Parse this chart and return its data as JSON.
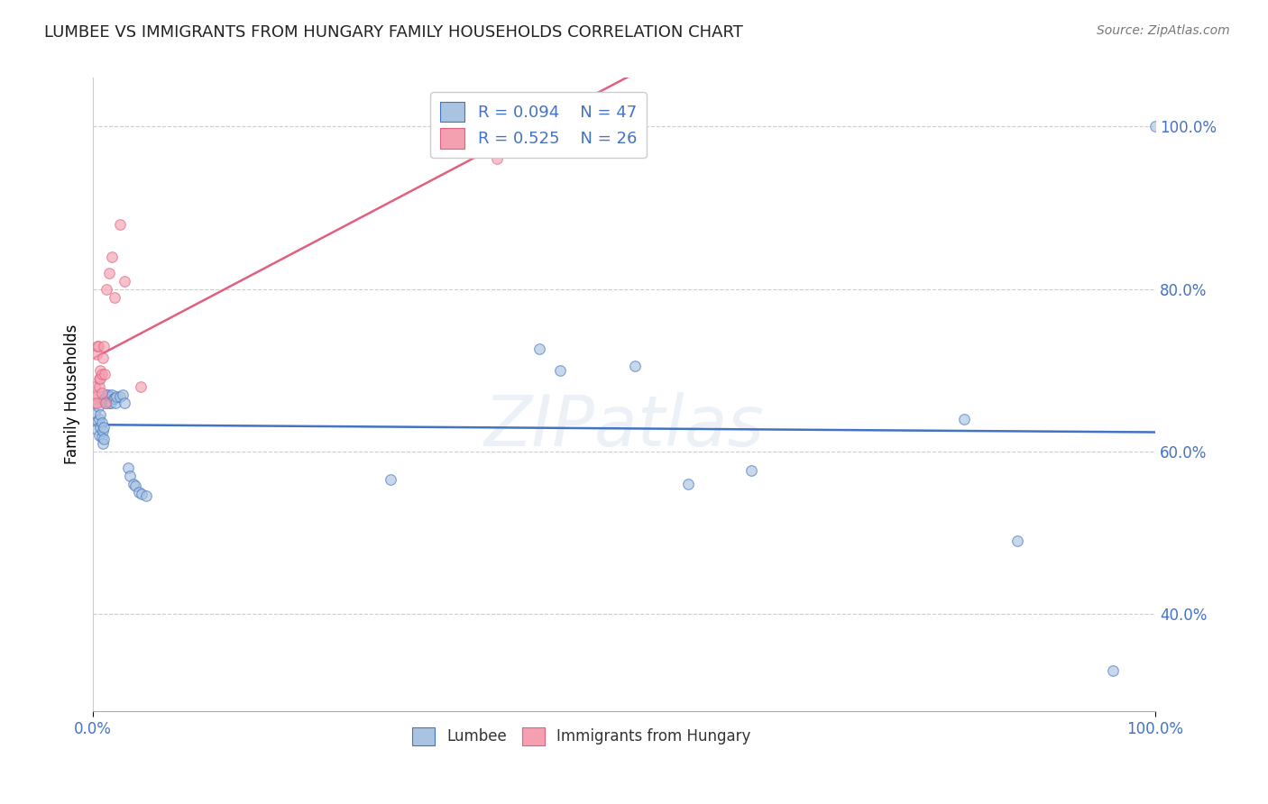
{
  "title": "LUMBEE VS IMMIGRANTS FROM HUNGARY FAMILY HOUSEHOLDS CORRELATION CHART",
  "source": "Source: ZipAtlas.com",
  "ylabel": "Family Households",
  "watermark": "ZIPatlas",
  "lumbee_R": 0.094,
  "lumbee_N": 47,
  "hungary_R": 0.525,
  "hungary_N": 26,
  "lumbee_color": "#a8c4e0",
  "hungary_color": "#f4a0b0",
  "lumbee_line_color": "#4472c4",
  "hungary_line_color": "#e06080",
  "legend_text_color": "#4472c4",
  "title_color": "#222222",
  "background_color": "#ffffff",
  "lumbee_x": [
    0.002,
    0.003,
    0.004,
    0.005,
    0.006,
    0.006,
    0.007,
    0.007,
    0.008,
    0.008,
    0.009,
    0.009,
    0.01,
    0.01,
    0.011,
    0.012,
    0.013,
    0.013,
    0.014,
    0.015,
    0.016,
    0.017,
    0.018,
    0.019,
    0.02,
    0.021,
    0.022,
    0.025,
    0.028,
    0.03,
    0.033,
    0.035,
    0.038,
    0.04,
    0.043,
    0.046,
    0.05,
    0.28,
    0.42,
    0.44,
    0.51,
    0.56,
    0.62,
    0.82,
    0.87,
    0.96,
    1.0
  ],
  "lumbee_y": [
    0.648,
    0.628,
    0.638,
    0.655,
    0.62,
    0.64,
    0.63,
    0.645,
    0.618,
    0.635,
    0.61,
    0.625,
    0.615,
    0.63,
    0.665,
    0.66,
    0.662,
    0.67,
    0.67,
    0.66,
    0.668,
    0.66,
    0.67,
    0.665,
    0.665,
    0.66,
    0.668,
    0.668,
    0.67,
    0.66,
    0.58,
    0.57,
    0.56,
    0.558,
    0.55,
    0.548,
    0.545,
    0.565,
    0.726,
    0.7,
    0.705,
    0.56,
    0.577,
    0.64,
    0.49,
    0.33,
    1.0
  ],
  "hungary_x": [
    0.0,
    0.001,
    0.002,
    0.002,
    0.003,
    0.003,
    0.004,
    0.005,
    0.006,
    0.006,
    0.007,
    0.007,
    0.008,
    0.008,
    0.009,
    0.01,
    0.011,
    0.012,
    0.013,
    0.015,
    0.018,
    0.02,
    0.025,
    0.03,
    0.045,
    0.38
  ],
  "hungary_y": [
    0.665,
    0.66,
    0.67,
    0.68,
    0.66,
    0.72,
    0.73,
    0.73,
    0.68,
    0.69,
    0.7,
    0.69,
    0.695,
    0.672,
    0.715,
    0.73,
    0.695,
    0.66,
    0.8,
    0.82,
    0.84,
    0.79,
    0.88,
    0.81,
    0.68,
    0.96
  ],
  "xlim": [
    0.0,
    1.0
  ],
  "ylim": [
    0.28,
    1.06
  ],
  "yticks": [
    0.4,
    0.6,
    0.8,
    1.0
  ],
  "ytick_labels": [
    "40.0%",
    "60.0%",
    "80.0%",
    "100.0%"
  ],
  "xtick_labels": [
    "0.0%",
    "100.0%"
  ],
  "grid_color": "#cccccc",
  "marker_size": 70,
  "marker_alpha": 0.65,
  "line_width": 1.8
}
